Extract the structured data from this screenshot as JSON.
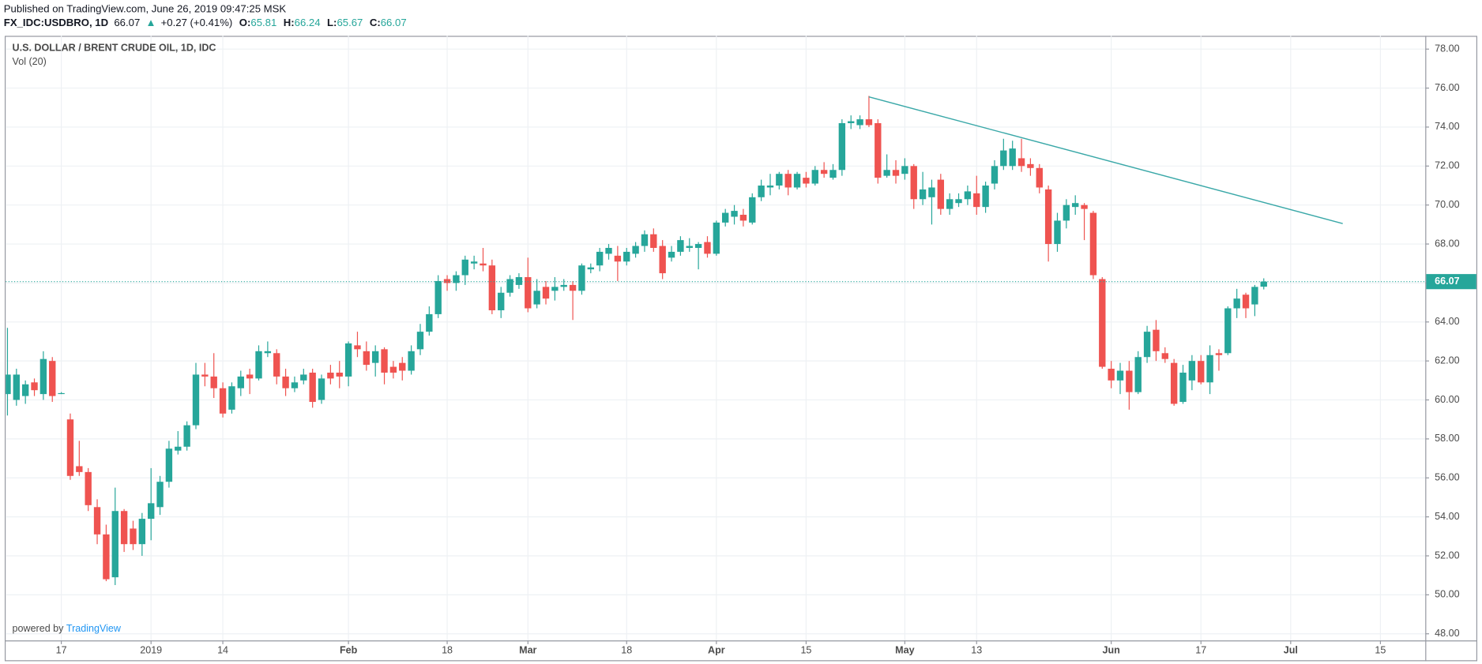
{
  "header": {
    "published": "Published on TradingView.com, June 26, 2019 09:47:25 MSK",
    "symbol": "FX_IDC:USDBRO, 1D",
    "last": "66.07",
    "arrow": "▲",
    "change": "+0.27 (+0.41%)",
    "ohlc": [
      {
        "label": "O:",
        "value": "65.81"
      },
      {
        "label": "H:",
        "value": "66.24"
      },
      {
        "label": "L:",
        "value": "65.67"
      },
      {
        "label": "C:",
        "value": "66.07"
      }
    ]
  },
  "branding": {
    "prefix": "powered by",
    "name": "TradingView"
  },
  "chart_data": {
    "type": "candlestick",
    "indicator": "Vol (20)",
    "up_color": "#26a69a",
    "down_color": "#ef5350",
    "grid": true,
    "xlim": [
      -0.2,
      158
    ],
    "ylim": [
      47.66,
      78.68
    ],
    "xticks": [
      {
        "value": 6,
        "label": "17"
      },
      {
        "value": 16,
        "label": "2019"
      },
      {
        "value": 24,
        "label": "14"
      },
      {
        "value": 38,
        "label": "Feb"
      },
      {
        "value": 49,
        "label": "18"
      },
      {
        "value": 58,
        "label": "Mar"
      },
      {
        "value": 69,
        "label": "18"
      },
      {
        "value": 79,
        "label": "Apr"
      },
      {
        "value": 89,
        "label": "15"
      },
      {
        "value": 100,
        "label": "May"
      },
      {
        "value": 108,
        "label": "13"
      },
      {
        "value": 123,
        "label": "Jun"
      },
      {
        "value": 133,
        "label": "17"
      },
      {
        "value": 143,
        "label": "Jul"
      },
      {
        "value": 153,
        "label": "15"
      }
    ],
    "yticks": [
      {
        "value": 48,
        "label": "48.00"
      },
      {
        "value": 50,
        "label": "50.00"
      },
      {
        "value": 52,
        "label": "52.00"
      },
      {
        "value": 54,
        "label": "54.00"
      },
      {
        "value": 56,
        "label": "56.00"
      },
      {
        "value": 58,
        "label": "58.00"
      },
      {
        "value": 60,
        "label": "60.00"
      },
      {
        "value": 62,
        "label": "62.00"
      },
      {
        "value": 64,
        "label": "64.00"
      },
      {
        "value": 66,
        "label": "66.00"
      },
      {
        "value": 68,
        "label": "68.00"
      },
      {
        "value": 70,
        "label": "70.00"
      },
      {
        "value": 72,
        "label": "72.00"
      },
      {
        "value": 74,
        "label": "74.00"
      },
      {
        "value": 76,
        "label": "76.00"
      },
      {
        "value": 78,
        "label": "78.00"
      }
    ],
    "last_price": 66.07,
    "trendline": {
      "x": [
        96,
        148.8
      ],
      "y": [
        75.55,
        69.05
      ],
      "color": "#3aa8a8"
    },
    "series": [
      {
        "name": "U.S. DOLLAR / BRENT CRUDE OIL, 1D, IDC",
        "x": [
          0,
          1,
          2,
          3,
          4,
          5,
          6,
          7,
          8,
          9,
          10,
          11,
          12,
          13,
          14,
          15,
          16,
          17,
          18,
          19,
          20,
          21,
          22,
          23,
          24,
          25,
          26,
          27,
          28,
          29,
          30,
          31,
          32,
          33,
          34,
          35,
          36,
          37,
          38,
          39,
          40,
          41,
          42,
          43,
          44,
          45,
          46,
          47,
          48,
          49,
          50,
          51,
          52,
          53,
          54,
          55,
          56,
          57,
          58,
          59,
          60,
          61,
          62,
          63,
          64,
          65,
          66,
          67,
          68,
          69,
          70,
          71,
          72,
          73,
          74,
          75,
          76,
          77,
          78,
          79,
          80,
          81,
          82,
          83,
          84,
          85,
          86,
          87,
          88,
          89,
          90,
          91,
          92,
          93,
          94,
          95,
          96,
          97,
          98,
          99,
          100,
          101,
          102,
          103,
          104,
          105,
          106,
          107,
          108,
          109,
          110,
          111,
          112,
          113,
          114,
          115,
          116,
          117,
          118,
          119,
          120,
          121,
          122,
          123,
          124,
          125,
          126,
          127,
          128,
          129,
          130,
          131,
          132,
          133,
          134,
          135,
          136,
          137,
          138,
          139,
          140
        ],
        "open": [
          60.3,
          60.0,
          60.2,
          60.9,
          60.3,
          62.0,
          60.35,
          59.0,
          56.6,
          56.3,
          54.5,
          53.1,
          50.9,
          54.3,
          53.4,
          52.6,
          53.9,
          54.5,
          55.8,
          57.4,
          57.6,
          58.7,
          61.3,
          61.2,
          60.6,
          59.5,
          60.6,
          61.3,
          61.1,
          62.4,
          62.4,
          61.2,
          60.6,
          61.0,
          61.4,
          60.0,
          61.4,
          61.4,
          61.2,
          62.8,
          62.5,
          61.9,
          62.6,
          61.7,
          61.9,
          61.5,
          62.6,
          63.5,
          64.4,
          66.2,
          66.0,
          66.4,
          67.0,
          67.0,
          66.9,
          64.6,
          65.5,
          65.9,
          66.3,
          64.9,
          65.8,
          65.6,
          65.8,
          65.9,
          65.6,
          66.7,
          66.9,
          67.5,
          67.4,
          67.1,
          67.5,
          67.9,
          68.5,
          67.9,
          67.3,
          67.6,
          67.8,
          67.8,
          68.1,
          67.5,
          69.1,
          69.4,
          69.5,
          69.1,
          70.4,
          70.9,
          71.0,
          71.6,
          70.9,
          71.4,
          71.1,
          71.8,
          71.4,
          71.8,
          74.2,
          74.1,
          74.4,
          74.2,
          71.5,
          71.8,
          71.6,
          72.0,
          70.3,
          70.4,
          71.3,
          69.8,
          70.1,
          70.3,
          70.6,
          69.9,
          71.1,
          72.0,
          72.0,
          72.4,
          72.1,
          71.9,
          70.8,
          68.0,
          69.2,
          69.9,
          70.0,
          69.6,
          66.2,
          61.6,
          61.0,
          61.5,
          60.4,
          62.2,
          63.6,
          62.4,
          61.9,
          59.9,
          61.0,
          62.0,
          60.9,
          62.4,
          62.4,
          64.7,
          65.4,
          64.9,
          65.81
        ],
        "high": [
          63.7,
          61.6,
          61.0,
          61.1,
          62.5,
          62.2,
          60.4,
          59.3,
          57.9,
          56.5,
          54.9,
          53.6,
          55.5,
          54.4,
          53.8,
          54.2,
          56.5,
          56.1,
          57.9,
          58.4,
          58.9,
          61.9,
          61.9,
          62.4,
          60.9,
          60.9,
          61.5,
          61.6,
          62.8,
          63.0,
          62.6,
          61.6,
          61.2,
          61.6,
          61.6,
          61.3,
          61.8,
          62.0,
          63.0,
          63.5,
          63.0,
          62.8,
          62.7,
          62.0,
          62.2,
          62.8,
          63.9,
          64.8,
          66.4,
          66.4,
          66.6,
          67.4,
          67.4,
          67.8,
          67.2,
          65.8,
          66.4,
          66.5,
          67.3,
          66.2,
          66.1,
          66.3,
          66.2,
          66.1,
          67.0,
          67.0,
          67.8,
          68.0,
          67.9,
          67.8,
          68.1,
          68.7,
          68.8,
          68.2,
          67.9,
          68.4,
          68.3,
          68.1,
          68.4,
          69.2,
          69.8,
          70.0,
          69.8,
          70.6,
          71.3,
          71.6,
          71.7,
          71.8,
          71.7,
          71.7,
          72.0,
          72.2,
          72.1,
          74.4,
          74.6,
          74.6,
          75.6,
          74.4,
          72.6,
          72.3,
          72.4,
          72.1,
          71.7,
          71.3,
          71.6,
          70.6,
          70.6,
          71.0,
          71.5,
          71.2,
          72.3,
          73.4,
          73.3,
          73.4,
          72.4,
          72.1,
          71.0,
          69.6,
          70.3,
          70.5,
          70.1,
          69.7,
          66.3,
          62.0,
          61.9,
          62.0,
          62.5,
          63.8,
          64.1,
          62.7,
          62.1,
          61.8,
          62.3,
          62.3,
          62.8,
          62.6,
          64.8,
          65.7,
          65.5,
          65.9,
          66.24
        ],
        "low": [
          59.2,
          59.7,
          59.8,
          60.2,
          60.0,
          59.9,
          60.3,
          55.9,
          56.1,
          54.3,
          52.6,
          50.7,
          50.5,
          52.2,
          52.3,
          52.0,
          52.8,
          54.1,
          55.5,
          57.2,
          57.4,
          58.5,
          60.7,
          60.1,
          59.1,
          59.3,
          60.2,
          60.3,
          61.0,
          62.2,
          60.8,
          60.2,
          60.4,
          60.8,
          59.6,
          59.8,
          60.8,
          60.6,
          60.7,
          62.2,
          61.5,
          61.2,
          60.8,
          61.1,
          61.0,
          61.3,
          62.3,
          63.3,
          64.2,
          65.6,
          65.6,
          65.9,
          66.7,
          66.6,
          64.4,
          64.2,
          65.3,
          65.7,
          64.5,
          64.7,
          64.9,
          65.1,
          65.6,
          64.1,
          65.4,
          66.5,
          66.6,
          67.2,
          66.1,
          66.9,
          67.3,
          67.6,
          67.6,
          66.2,
          67.1,
          67.4,
          67.6,
          66.7,
          67.3,
          67.4,
          68.9,
          69.0,
          68.9,
          69.0,
          70.2,
          70.5,
          70.8,
          70.5,
          70.8,
          70.9,
          71.0,
          71.4,
          71.3,
          71.5,
          73.9,
          73.9,
          74.0,
          71.1,
          71.4,
          71.1,
          71.3,
          69.8,
          70.0,
          69.0,
          69.5,
          69.5,
          69.9,
          70.0,
          69.5,
          69.6,
          70.8,
          71.8,
          71.8,
          71.7,
          71.5,
          70.6,
          67.1,
          67.6,
          68.8,
          69.5,
          68.2,
          66.2,
          61.6,
          60.6,
          60.3,
          59.5,
          60.3,
          61.9,
          62.0,
          61.9,
          59.7,
          59.8,
          60.5,
          60.8,
          60.3,
          61.5,
          62.3,
          64.2,
          64.2,
          64.3,
          65.67
        ],
        "close": [
          61.3,
          61.3,
          60.8,
          60.5,
          62.1,
          60.2,
          60.35,
          56.1,
          56.3,
          54.6,
          53.1,
          50.8,
          54.3,
          52.6,
          52.6,
          53.9,
          54.7,
          55.8,
          57.5,
          57.6,
          58.7,
          61.3,
          61.2,
          60.6,
          59.3,
          60.7,
          61.2,
          61.1,
          62.5,
          62.5,
          61.2,
          60.6,
          60.9,
          61.3,
          59.9,
          61.1,
          61.1,
          61.2,
          62.9,
          62.6,
          61.8,
          62.5,
          61.4,
          61.4,
          61.5,
          62.5,
          63.5,
          64.4,
          66.1,
          66.0,
          66.4,
          67.2,
          67.1,
          66.9,
          64.6,
          65.5,
          66.2,
          66.3,
          64.7,
          65.6,
          65.2,
          65.8,
          65.9,
          65.6,
          66.9,
          66.8,
          67.6,
          67.8,
          67.1,
          67.6,
          67.9,
          68.5,
          67.8,
          66.5,
          67.6,
          68.2,
          67.9,
          68.0,
          67.5,
          69.1,
          69.6,
          69.7,
          69.2,
          70.4,
          71.0,
          71.0,
          71.6,
          70.9,
          71.6,
          71.1,
          71.8,
          71.6,
          71.8,
          74.2,
          74.3,
          74.4,
          74.1,
          71.4,
          71.8,
          71.5,
          72.0,
          70.3,
          70.8,
          70.9,
          69.8,
          70.3,
          70.3,
          70.7,
          69.9,
          71.0,
          72.0,
          72.8,
          72.9,
          72.0,
          71.9,
          70.9,
          68.0,
          69.2,
          70.0,
          70.1,
          69.8,
          66.4,
          61.7,
          61.0,
          61.5,
          60.4,
          62.2,
          63.5,
          62.5,
          62.1,
          59.8,
          61.4,
          62.0,
          60.9,
          62.3,
          62.3,
          64.7,
          65.2,
          64.7,
          65.8,
          66.07
        ]
      }
    ]
  }
}
